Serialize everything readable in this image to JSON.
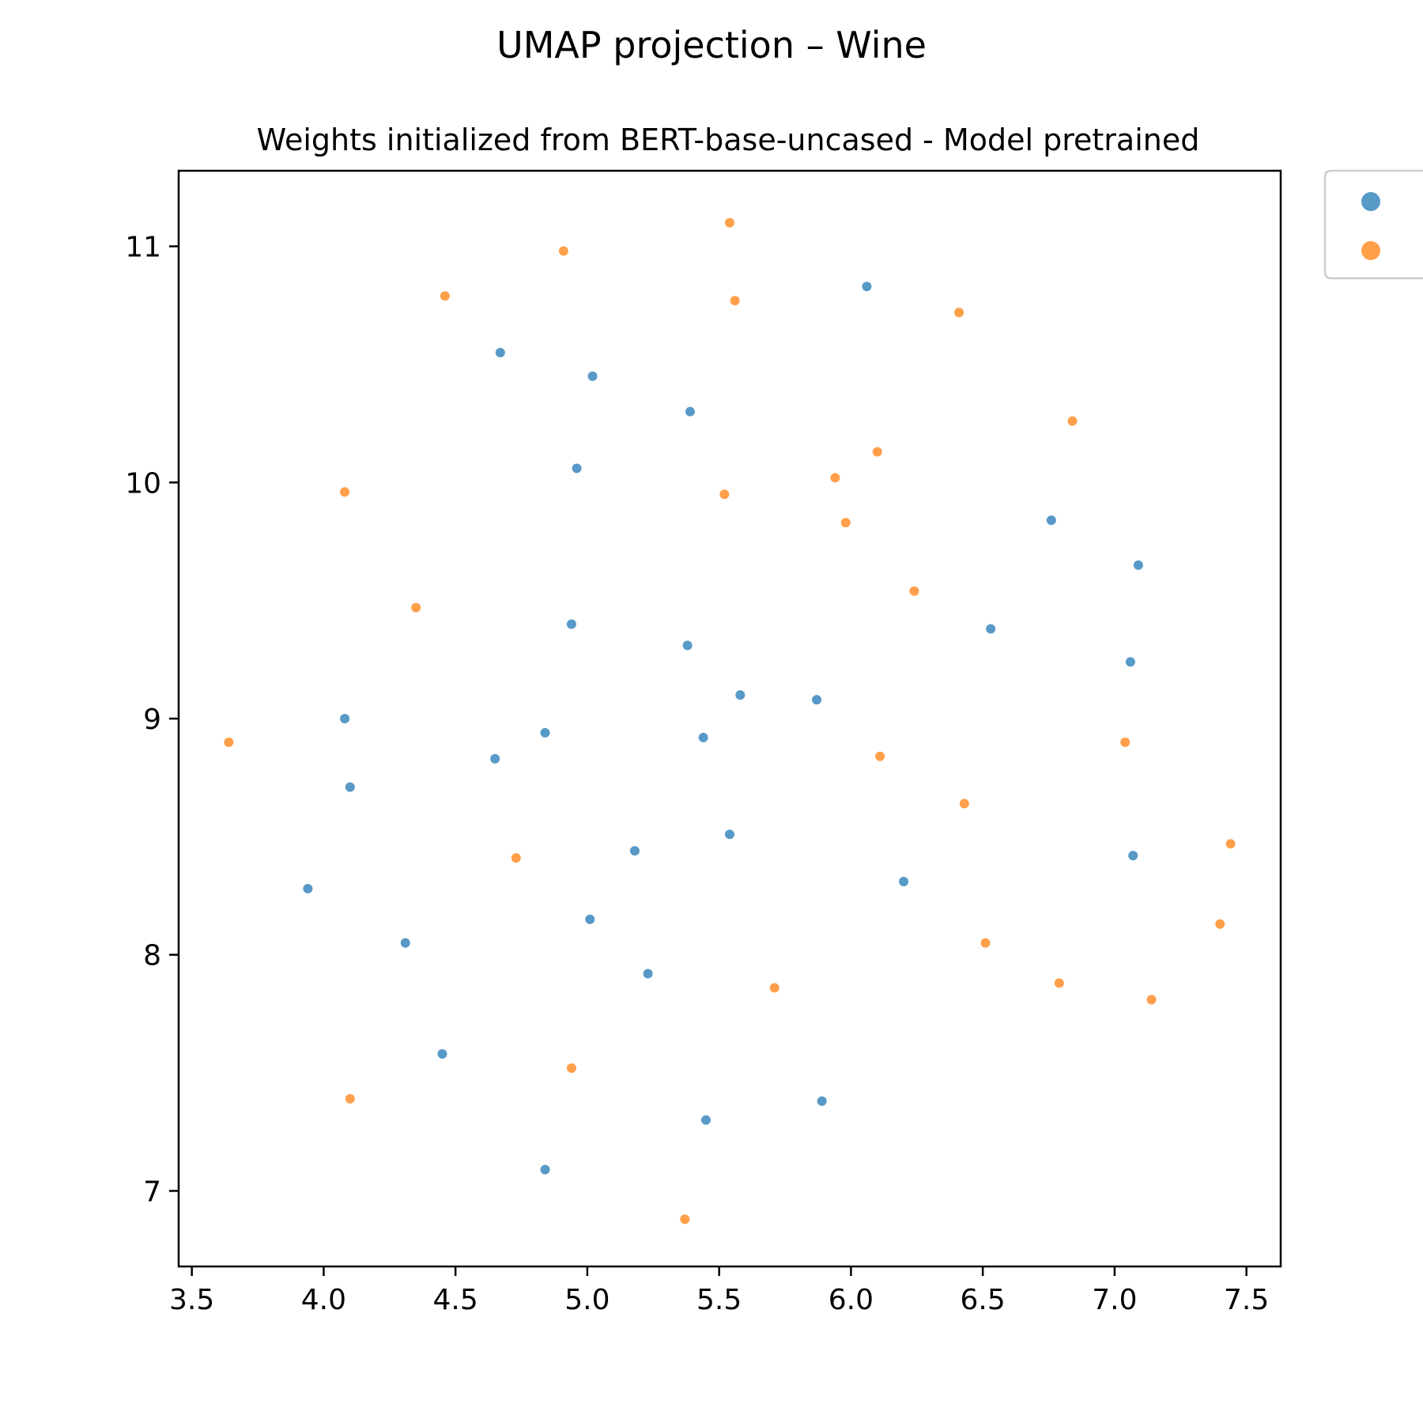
{
  "figure": {
    "title": "UMAP projection – Wine"
  },
  "chart_data": {
    "type": "scatter",
    "title": "Weights initialized from BERT-base-uncased - Model pretrained",
    "xlabel": "",
    "ylabel": "",
    "xlim": [
      3.45,
      7.63
    ],
    "ylim": [
      6.68,
      11.32
    ],
    "xticks": [
      "3.5",
      "4.0",
      "4.5",
      "5.0",
      "5.5",
      "6.0",
      "6.5",
      "7.0",
      "7.5"
    ],
    "yticks": [
      "7",
      "8",
      "9",
      "10",
      "11"
    ],
    "grid": false,
    "legend": {
      "placement": "upper right, outside plot",
      "labels_visible": false
    },
    "series": [
      {
        "color": "#1f77b4",
        "points": [
          [
            6.06,
            10.83
          ],
          [
            4.67,
            10.55
          ],
          [
            5.02,
            10.45
          ],
          [
            5.39,
            10.3
          ],
          [
            4.96,
            10.06
          ],
          [
            6.76,
            9.84
          ],
          [
            7.09,
            9.65
          ],
          [
            4.94,
            9.4
          ],
          [
            6.53,
            9.38
          ],
          [
            5.38,
            9.31
          ],
          [
            7.06,
            9.24
          ],
          [
            5.58,
            9.1
          ],
          [
            5.87,
            9.08
          ],
          [
            4.08,
            9.0
          ],
          [
            4.84,
            8.94
          ],
          [
            5.44,
            8.92
          ],
          [
            4.65,
            8.83
          ],
          [
            4.1,
            8.71
          ],
          [
            5.54,
            8.51
          ],
          [
            5.18,
            8.44
          ],
          [
            7.07,
            8.42
          ],
          [
            6.2,
            8.31
          ],
          [
            3.94,
            8.28
          ],
          [
            5.01,
            8.15
          ],
          [
            4.31,
            8.05
          ],
          [
            5.23,
            7.92
          ],
          [
            4.45,
            7.58
          ],
          [
            5.89,
            7.38
          ],
          [
            5.45,
            7.3
          ],
          [
            4.84,
            7.09
          ]
        ]
      },
      {
        "color": "#ff7f0e",
        "points": [
          [
            5.54,
            11.1
          ],
          [
            4.91,
            10.98
          ],
          [
            4.46,
            10.79
          ],
          [
            5.56,
            10.77
          ],
          [
            6.41,
            10.72
          ],
          [
            6.84,
            10.26
          ],
          [
            6.1,
            10.13
          ],
          [
            5.94,
            10.02
          ],
          [
            4.08,
            9.96
          ],
          [
            5.52,
            9.95
          ],
          [
            5.98,
            9.83
          ],
          [
            6.24,
            9.54
          ],
          [
            4.35,
            9.47
          ],
          [
            3.64,
            8.9
          ],
          [
            7.04,
            8.9
          ],
          [
            6.11,
            8.84
          ],
          [
            6.43,
            8.64
          ],
          [
            7.44,
            8.47
          ],
          [
            4.73,
            8.41
          ],
          [
            7.4,
            8.13
          ],
          [
            6.51,
            8.05
          ],
          [
            6.79,
            7.88
          ],
          [
            5.71,
            7.86
          ],
          [
            7.14,
            7.81
          ],
          [
            4.94,
            7.52
          ],
          [
            4.1,
            7.39
          ],
          [
            5.37,
            6.88
          ]
        ]
      }
    ]
  }
}
